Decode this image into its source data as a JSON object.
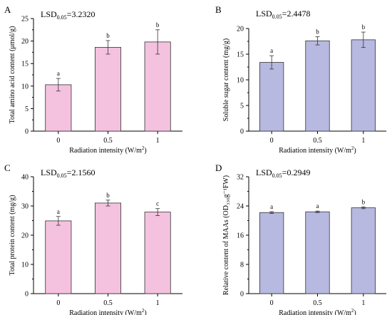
{
  "colors": {
    "pink_fill": "#f4c2de",
    "purple_fill": "#b7b9e0",
    "bar_stroke": "#333333"
  },
  "chart_data": [
    {
      "panel_letter": "A",
      "type": "bar",
      "categories": [
        "0",
        "0.5",
        "1"
      ],
      "values": [
        10.3,
        18.6,
        19.8
      ],
      "errors": [
        1.4,
        1.5,
        2.7
      ],
      "letters": [
        "a",
        "b",
        "b"
      ],
      "lsd_label": "LSD",
      "lsd_sub": "0.05",
      "lsd_value": "=3.2320",
      "ylabel": "Total amino acid content (μmol/g)",
      "xlabel": "Radiation intensity (W/m",
      "xlabel_sup": "2",
      "xlabel_close": ")",
      "ylim": [
        0,
        25
      ],
      "yticks": [
        0,
        5,
        10,
        15,
        20,
        25
      ],
      "color": "pink"
    },
    {
      "panel_letter": "B",
      "type": "bar",
      "categories": [
        "0",
        "0.5",
        "1"
      ],
      "values": [
        13.4,
        17.6,
        17.8
      ],
      "errors": [
        1.3,
        0.8,
        1.5
      ],
      "letters": [
        "a",
        "b",
        "b"
      ],
      "lsd_label": "LSD",
      "lsd_sub": "0.05",
      "lsd_value": "=2.4478",
      "ylabel": "Soluble sugar content (mg/g)",
      "xlabel": "Radiation intensity (W/m",
      "xlabel_sup": "2",
      "xlabel_close": ")",
      "ylim": [
        0,
        20
      ],
      "yticks": [
        0,
        5,
        10,
        15,
        20
      ],
      "color": "purple"
    },
    {
      "panel_letter": "C",
      "type": "bar",
      "categories": [
        "0",
        "0.5",
        "1"
      ],
      "values": [
        24.9,
        31.0,
        27.9
      ],
      "errors": [
        1.5,
        1.0,
        1.2
      ],
      "letters": [
        "a",
        "b",
        "c"
      ],
      "lsd_label": "LSD",
      "lsd_sub": "0.05",
      "lsd_value": "=2.1560",
      "ylabel": "Total protein content (mg/g)",
      "xlabel": "Radiation intensity (W/m",
      "xlabel_sup": "2",
      "xlabel_close": ")",
      "ylim": [
        0,
        40
      ],
      "yticks": [
        0,
        10,
        20,
        30,
        40
      ],
      "color": "pink"
    },
    {
      "panel_letter": "D",
      "type": "bar",
      "categories": [
        "0",
        "0.5",
        "1"
      ],
      "values": [
        22.2,
        22.4,
        23.5
      ],
      "errors": [
        0.25,
        0.2,
        0.25
      ],
      "letters": [
        "a",
        "a",
        "b"
      ],
      "lsd_label": "LSD",
      "lsd_sub": "0.05",
      "lsd_value": "=0.2949",
      "ylabel": "Relative content of MAAs (OD₃₃₀g⁻¹FW)",
      "xlabel": "Radiation intensity (W/m",
      "xlabel_sup": "2",
      "xlabel_close": ")",
      "ylim": [
        0,
        32
      ],
      "yticks": [
        0,
        8,
        16,
        24,
        32
      ],
      "color": "purple"
    }
  ]
}
